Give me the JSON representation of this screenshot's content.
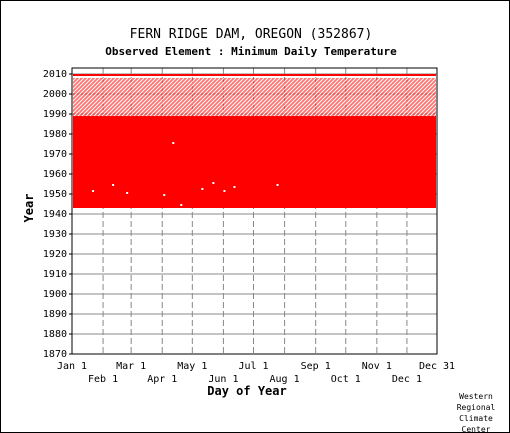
{
  "chart_data": {
    "type": "heatmap",
    "title": "FERN RIDGE DAM, OREGON   (352867)",
    "subtitle": "Observed Element : Minimum Daily Temperature",
    "xlabel": "Day of Year",
    "ylabel": "Year",
    "ylim": [
      1870,
      2013
    ],
    "xlim": [
      1,
      365
    ],
    "yticks": [
      1870,
      1880,
      1890,
      1900,
      1910,
      1920,
      1930,
      1940,
      1950,
      1960,
      1970,
      1980,
      1990,
      2000,
      2010
    ],
    "xticks_top_row": [
      "Jan 1",
      "Mar 1",
      "May 1",
      "Jul 1",
      "Sep 1",
      "Nov 1",
      "Dec 31"
    ],
    "xticks_bottom_row": [
      "Feb 1",
      "Apr 1",
      "Jun 1",
      "Aug 1",
      "Oct 1",
      "Dec 1"
    ],
    "grid": true,
    "series": [
      {
        "description_only": false,
        "year_start": 1943,
        "year_end": 1988,
        "coverage": "complete"
      },
      {
        "year_start": 1989,
        "year_end": 2007,
        "coverage": "partial"
      },
      {
        "year_start": 2009,
        "year_end": 2009,
        "coverage": "complete"
      }
    ],
    "colors": {
      "data": "#ff0000",
      "grid": "#888888",
      "background": "#ffffff"
    }
  },
  "credit": [
    "Western",
    "Regional",
    "Climate",
    "Center"
  ]
}
